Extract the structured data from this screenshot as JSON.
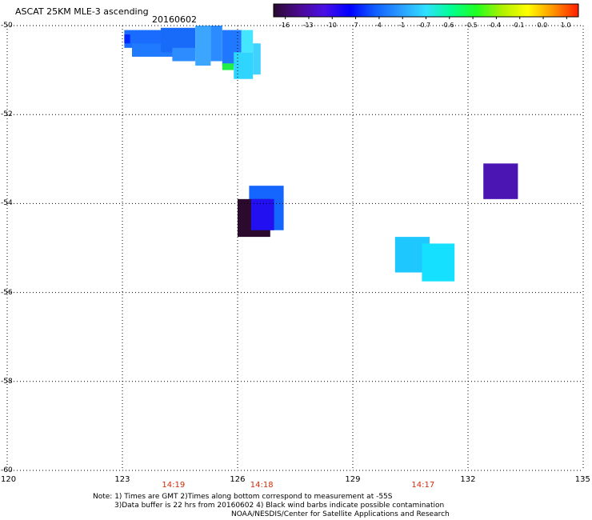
{
  "title": "ASCAT 25KM MLE-3 ascending",
  "date": "20160602",
  "map_data": {
    "type": "heatmap",
    "lon_range": [
      120,
      135
    ],
    "lat_range": [
      -60,
      -50
    ],
    "lon_ticks": [
      "120",
      "123",
      "126",
      "129",
      "132",
      "135"
    ],
    "lat_ticks": [
      "-50",
      "-52",
      "-54",
      "-56",
      "-58",
      "-60"
    ],
    "grid": true,
    "time_labels": [
      {
        "lon": 124.3,
        "text": "14:19"
      },
      {
        "lon": 126.6,
        "text": "14:18"
      },
      {
        "lon": 130.8,
        "text": "14:17"
      }
    ],
    "colorbar": {
      "placement": "top-right",
      "labels": [
        "-16",
        "-13",
        "-10",
        "-7",
        "-4",
        "-1",
        "-0.7",
        "-0.6",
        "-0.5",
        "-0.4",
        "-0.1",
        "0.0",
        "1.0"
      ],
      "colors": [
        "#2a0a30",
        "#4a0a90",
        "#4a10e6",
        "#0000ff",
        "#1060ff",
        "#2a9cff",
        "#2fe0ff",
        "#00ff90",
        "#20ff20",
        "#b0f000",
        "#ffff00",
        "#ff9500",
        "#ff1c00"
      ]
    },
    "cells": [
      {
        "lon": [
          123.05,
          124.0
        ],
        "lat": [
          -50.1,
          -50.5
        ],
        "value": -4,
        "color": "#1a6cff"
      },
      {
        "lon": [
          123.05,
          123.2
        ],
        "lat": [
          -50.2,
          -50.4
        ],
        "value": -8,
        "color": "#0028ff"
      },
      {
        "lon": [
          123.25,
          124.6
        ],
        "lat": [
          -50.4,
          -50.7
        ],
        "value": -4,
        "color": "#1f7aff"
      },
      {
        "lon": [
          124.0,
          124.9
        ],
        "lat": [
          -50.05,
          -50.6
        ],
        "value": -4,
        "color": "#186af8"
      },
      {
        "lon": [
          124.3,
          124.9
        ],
        "lat": [
          -50.5,
          -50.8
        ],
        "value": -4,
        "color": "#2d8cff"
      },
      {
        "lon": [
          124.9,
          125.3
        ],
        "lat": [
          -50.0,
          -50.9
        ],
        "value": -3,
        "color": "#3ca6ff"
      },
      {
        "lon": [
          125.3,
          125.6
        ],
        "lat": [
          -50.0,
          -50.8
        ],
        "value": -4,
        "color": "#2a8cff"
      },
      {
        "lon": [
          125.6,
          126.1
        ],
        "lat": [
          -50.1,
          -50.9
        ],
        "value": -4,
        "color": "#1f78ff"
      },
      {
        "lon": [
          125.6,
          125.9
        ],
        "lat": [
          -50.85,
          -51.0
        ],
        "value": -0.5,
        "color": "#22ee4a"
      },
      {
        "lon": [
          125.9,
          126.4
        ],
        "lat": [
          -50.6,
          -51.2
        ],
        "value": -1,
        "color": "#2fd4ff"
      },
      {
        "lon": [
          126.1,
          126.4
        ],
        "lat": [
          -50.1,
          -50.6
        ],
        "value": -1,
        "color": "#44e6ff"
      },
      {
        "lon": [
          126.4,
          126.6
        ],
        "lat": [
          -50.4,
          -51.1
        ],
        "value": -1,
        "color": "#40d2ff"
      },
      {
        "lon": [
          126.3,
          127.2
        ],
        "lat": [
          -53.6,
          -54.6
        ],
        "value": -5,
        "color": "#1565ff"
      },
      {
        "lon": [
          126.0,
          126.85
        ],
        "lat": [
          -53.9,
          -54.75
        ],
        "value": -16,
        "color": "#2b0a2e"
      },
      {
        "lon": [
          126.35,
          126.95
        ],
        "lat": [
          -53.9,
          -54.6
        ],
        "value": -9,
        "color": "#2210f0"
      },
      {
        "lon": [
          132.4,
          133.3
        ],
        "lat": [
          -53.1,
          -53.9
        ],
        "value": -12,
        "color": "#4a15b3"
      },
      {
        "lon": [
          130.1,
          131.0
        ],
        "lat": [
          -54.75,
          -55.55
        ],
        "value": -1,
        "color": "#1ec8ff"
      },
      {
        "lon": [
          130.8,
          131.65
        ],
        "lat": [
          -54.9,
          -55.75
        ],
        "value": -0.8,
        "color": "#16e0ff"
      }
    ]
  },
  "notes": {
    "line1": "Note: 1) Times are GMT 2)Times along bottom correspond to measurement at -55S",
    "line2": "3)Data buffer is 22 hrs from 20160602 4) Black wind barbs indicate possible contamination",
    "credit": "NOAA/NESDIS/Center for Satellite Applications and Research"
  }
}
